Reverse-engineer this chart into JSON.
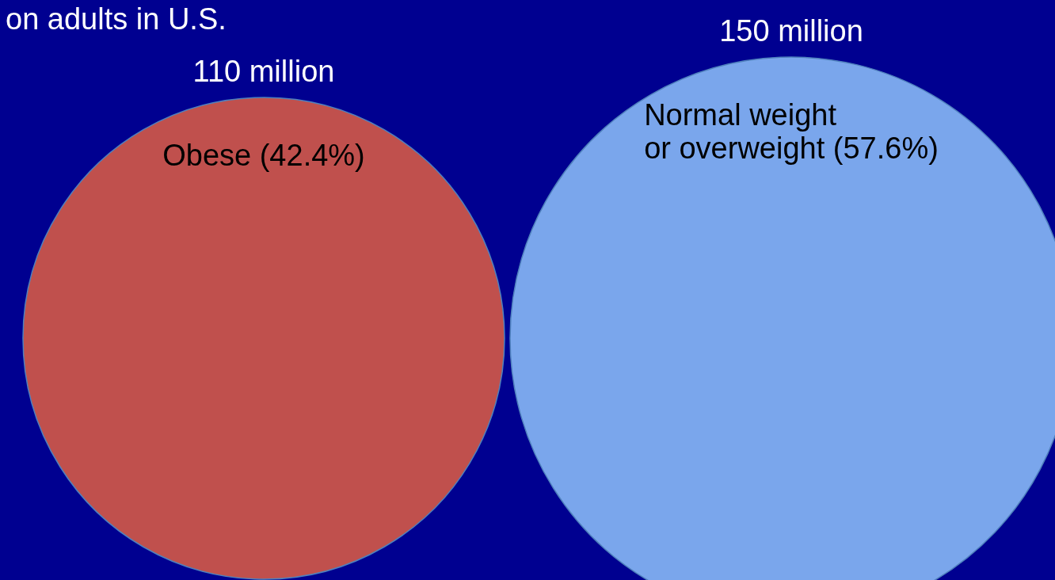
{
  "chart_data": {
    "type": "other",
    "title": "on adults in U.S.",
    "categories": [
      "Obese (42.4%)",
      "Normal weight\nor overweight (57.6%)"
    ],
    "values": [
      110,
      150
    ],
    "value_labels": [
      "110 million",
      "150 million"
    ],
    "colors": [
      "#c0504d",
      "#7aa6ec"
    ]
  }
}
